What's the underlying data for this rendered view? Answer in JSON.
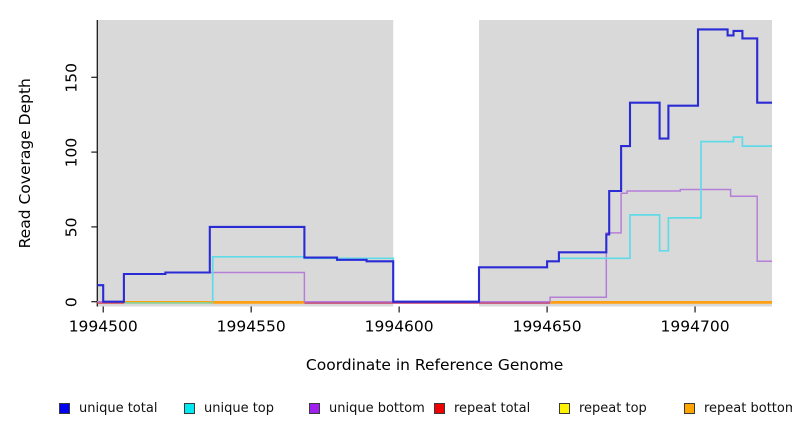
{
  "chart_data": {
    "type": "line",
    "variant": "step",
    "title": "",
    "xlabel": "Coordinate in Reference Genome",
    "ylabel": "Read Coverage Depth",
    "xlim": [
      1994498,
      1994726
    ],
    "ylim": [
      0,
      188.3
    ],
    "xticks": [
      1994500,
      1994550,
      1994600,
      1994650,
      1994700
    ],
    "yticks": [
      0,
      50,
      100,
      150
    ],
    "grid": false,
    "panel_bg": "#d9d9d9",
    "gap_region": {
      "from": 1994598,
      "to": 1994627,
      "color": "#ffffff"
    },
    "series": [
      {
        "name": "repeat total",
        "group": "repeat",
        "color": "#d6454d",
        "width": 1.5,
        "points": [
          [
            1994498,
            0
          ]
        ]
      },
      {
        "name": "repeat top",
        "group": "repeat",
        "color": "#e8e23c",
        "width": 1.5,
        "points": [
          [
            1994498,
            0
          ]
        ]
      },
      {
        "name": "repeat bottom",
        "group": "repeat",
        "color": "#ffa013",
        "width": 1.5,
        "points": [
          [
            1994498,
            0
          ]
        ]
      },
      {
        "name": "unique bottom",
        "group": "unique",
        "color": "#b57fd9",
        "width": 1.5,
        "points": [
          [
            1994498,
            0
          ],
          [
            1994507,
            18.5
          ],
          [
            1994521,
            19.5
          ],
          [
            1994568,
            0
          ],
          [
            1994651,
            3
          ],
          [
            1994670,
            46
          ],
          [
            1994675,
            72.5
          ],
          [
            1994677,
            74
          ],
          [
            1994695,
            75
          ],
          [
            1994712,
            70.5
          ],
          [
            1994721,
            27
          ]
        ]
      },
      {
        "name": "unique top",
        "group": "unique",
        "color": "#5fdbe8",
        "width": 1.7,
        "points": [
          [
            1994537,
            0
          ],
          [
            1994537,
            30
          ],
          [
            1994568,
            29
          ],
          [
            1994598,
            0
          ],
          [
            1994627,
            23
          ],
          [
            1994650,
            27
          ],
          [
            1994654,
            29
          ],
          [
            1994678,
            58
          ],
          [
            1994688,
            34
          ],
          [
            1994691,
            56
          ],
          [
            1994702,
            107
          ],
          [
            1994713,
            110
          ],
          [
            1994716,
            104
          ]
        ]
      },
      {
        "name": "unique total",
        "group": "unique",
        "color": "#2b2bd5",
        "width": 2.1,
        "points": [
          [
            1994498,
            11
          ],
          [
            1994500,
            0
          ],
          [
            1994507,
            18.5
          ],
          [
            1994521,
            19.5
          ],
          [
            1994536,
            50
          ],
          [
            1994568,
            29.5
          ],
          [
            1994579,
            28
          ],
          [
            1994589,
            27
          ],
          [
            1994598,
            0
          ],
          [
            1994627,
            23
          ],
          [
            1994650,
            27
          ],
          [
            1994654,
            33
          ],
          [
            1994670,
            45
          ],
          [
            1994671,
            74
          ],
          [
            1994675,
            104
          ],
          [
            1994678,
            133
          ],
          [
            1994688,
            109
          ],
          [
            1994691,
            131
          ],
          [
            1994701,
            182
          ],
          [
            1994711,
            178
          ],
          [
            1994713,
            181
          ],
          [
            1994716,
            176
          ],
          [
            1994721,
            133
          ]
        ]
      }
    ],
    "baseline_segments": [
      {
        "from": 1994498,
        "to": 1994507,
        "color": "#d6454d"
      },
      {
        "from": 1994507,
        "to": 1994537,
        "color": "#8fce8f"
      },
      {
        "from": 1994537,
        "to": 1994568,
        "color": "#ffa013"
      },
      {
        "from": 1994568,
        "to": 1994651,
        "color": "#c43a66"
      },
      {
        "from": 1994651,
        "to": 1994726,
        "color": "#ffa013"
      }
    ],
    "legend_position": "bottom"
  },
  "legend": {
    "items": [
      {
        "label": "unique total",
        "color": "#0000f0"
      },
      {
        "label": "unique top",
        "color": "#00e8f0"
      },
      {
        "label": "unique bottom",
        "color": "#a020f0"
      },
      {
        "label": "repeat total",
        "color": "#ee0000"
      },
      {
        "label": "repeat top",
        "color": "#fff200"
      },
      {
        "label": "repeat bottom",
        "color": "#ffa500"
      }
    ]
  }
}
